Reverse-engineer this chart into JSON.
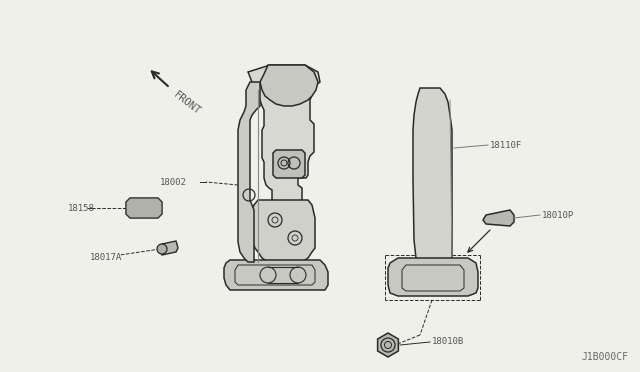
{
  "bg_color": "#f0f0eb",
  "line_color": "#2a2a2a",
  "label_color": "#555555",
  "watermark": "J1B000CF",
  "fig_width": 6.4,
  "fig_height": 3.72,
  "dpi": 100,
  "parts": [
    "18002",
    "18110F",
    "18010P",
    "18158",
    "18017A",
    "18010B"
  ],
  "front_label": "FRONT"
}
